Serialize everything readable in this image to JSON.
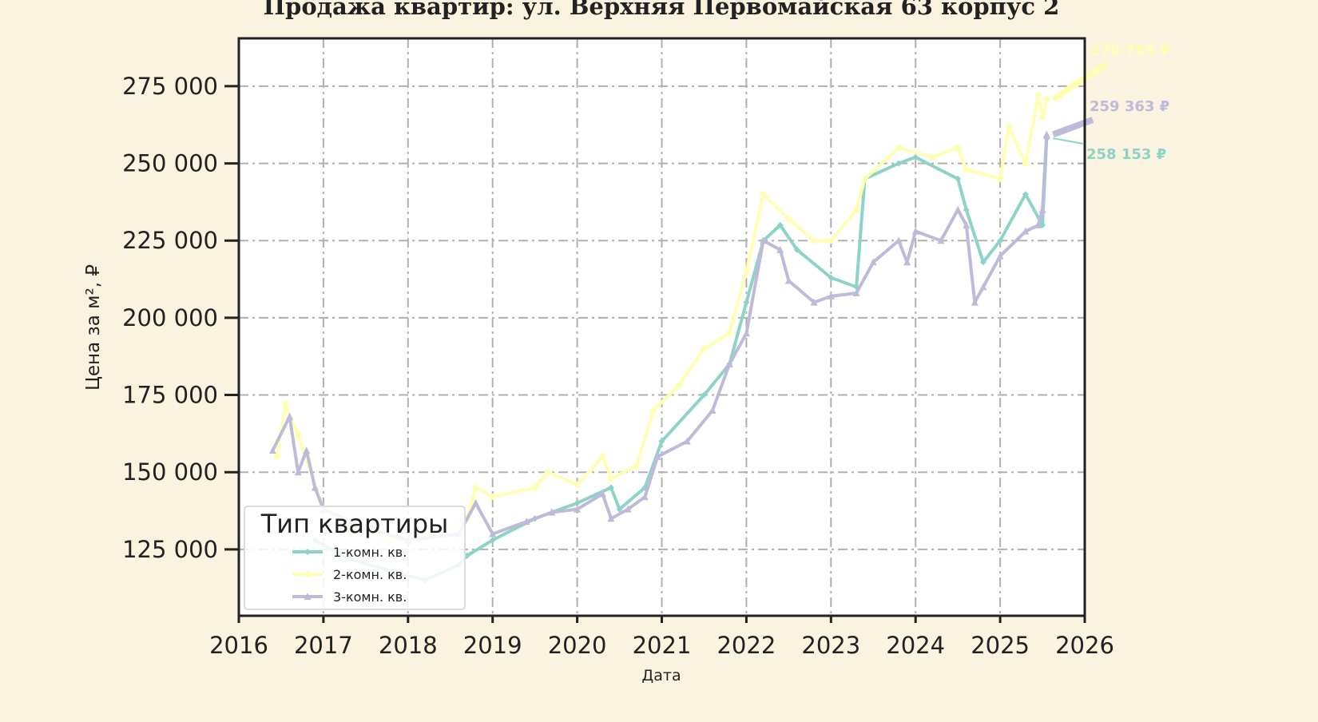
{
  "chart_data": {
    "type": "line",
    "title": "Продажа квартир: ул. Верхняя Первомайская 63 корпус 2",
    "xlabel": "Дата",
    "ylabel": "Цена за м², ₽",
    "xlim": [
      2016,
      2026
    ],
    "ylim": [
      103500,
      290500
    ],
    "x_ticks": [
      "2016",
      "2017",
      "2018",
      "2019",
      "2020",
      "2021",
      "2022",
      "2023",
      "2024",
      "2025",
      "2026"
    ],
    "y_ticks": [
      125000,
      150000,
      175000,
      200000,
      225000,
      250000,
      275000
    ],
    "y_tick_labels": [
      "125 000",
      "150 000",
      "175 000",
      "200 000",
      "225 000",
      "250 000",
      "275 000"
    ],
    "grid": true,
    "legend": {
      "title": "Тип квартиры",
      "placement": "lower-left"
    },
    "series": [
      {
        "name": "1-комн. кв.",
        "color": "#8dd3c7",
        "marker": "diamond",
        "x": [
          2016.9,
          2017.3,
          2017.8,
          2018.2,
          2018.6,
          2018.7,
          2019.0,
          2019.5,
          2020.0,
          2020.4,
          2020.5,
          2020.8,
          2021.0,
          2021.5,
          2021.8,
          2022.0,
          2022.2,
          2022.4,
          2022.6,
          2023.0,
          2023.3,
          2023.4,
          2023.8,
          2024.0,
          2024.5,
          2024.6,
          2024.8,
          2025.0,
          2025.3,
          2025.5,
          2025.55
        ],
        "y": [
          128000,
          122000,
          118000,
          115000,
          120000,
          123000,
          128000,
          135000,
          140000,
          145000,
          138000,
          145000,
          160000,
          175000,
          185000,
          205000,
          225000,
          230000,
          222000,
          213000,
          210000,
          245000,
          250000,
          252000,
          245000,
          235000,
          218000,
          225000,
          240000,
          230000,
          258153
        ]
      },
      {
        "name": "2-комн. кв.",
        "color": "#ffffb3",
        "marker": "circle",
        "x": [
          2016.45,
          2016.55,
          2016.7,
          2017.0,
          2017.3,
          2017.8,
          2018.3,
          2018.7,
          2018.8,
          2019.0,
          2019.5,
          2019.65,
          2020.0,
          2020.3,
          2020.4,
          2020.7,
          2020.9,
          2021.2,
          2021.5,
          2021.8,
          2022.0,
          2022.2,
          2022.5,
          2022.8,
          2023.0,
          2023.3,
          2023.4,
          2023.8,
          2024.2,
          2024.5,
          2024.6,
          2025.0,
          2025.1,
          2025.3,
          2025.45,
          2025.5,
          2025.55
        ],
        "y": [
          155000,
          172000,
          162000,
          138000,
          132000,
          128000,
          130000,
          135000,
          145000,
          142000,
          145000,
          150000,
          146000,
          155000,
          148000,
          152000,
          170000,
          178000,
          190000,
          195000,
          215000,
          240000,
          232000,
          225000,
          225000,
          235000,
          245000,
          255000,
          252000,
          255000,
          248000,
          245000,
          262000,
          250000,
          272000,
          265000,
          270785
        ]
      },
      {
        "name": "3-комн. кв.",
        "color": "#bebada",
        "marker": "triangle",
        "x": [
          2016.4,
          2016.6,
          2016.7,
          2016.8,
          2016.9,
          2017.0,
          2017.5,
          2018.0,
          2018.6,
          2018.8,
          2019.0,
          2019.4,
          2019.7,
          2020.0,
          2020.3,
          2020.4,
          2020.6,
          2020.8,
          2020.95,
          2021.3,
          2021.6,
          2021.8,
          2022.0,
          2022.2,
          2022.4,
          2022.5,
          2022.8,
          2023.0,
          2023.3,
          2023.5,
          2023.8,
          2023.9,
          2024.0,
          2024.3,
          2024.5,
          2024.6,
          2024.7,
          2024.8,
          2025.0,
          2025.3,
          2025.45,
          2025.5,
          2025.55
        ],
        "y": [
          157000,
          168000,
          150000,
          157000,
          145000,
          138000,
          132000,
          128000,
          130000,
          140000,
          130000,
          134000,
          137000,
          138000,
          143000,
          135000,
          138000,
          142000,
          155000,
          160000,
          170000,
          185000,
          195000,
          225000,
          222000,
          212000,
          205000,
          207000,
          208000,
          218000,
          225000,
          218000,
          228000,
          225000,
          235000,
          230000,
          205000,
          210000,
          220000,
          228000,
          230000,
          235000,
          259363
        ]
      }
    ],
    "annotations": [
      {
        "text": "270 785 ₽",
        "series": "2-комн. кв."
      },
      {
        "text": "259 363 ₽",
        "series": "3-комн. кв."
      },
      {
        "text": "258 153 ₽",
        "series": "1-комн. кв."
      }
    ]
  }
}
